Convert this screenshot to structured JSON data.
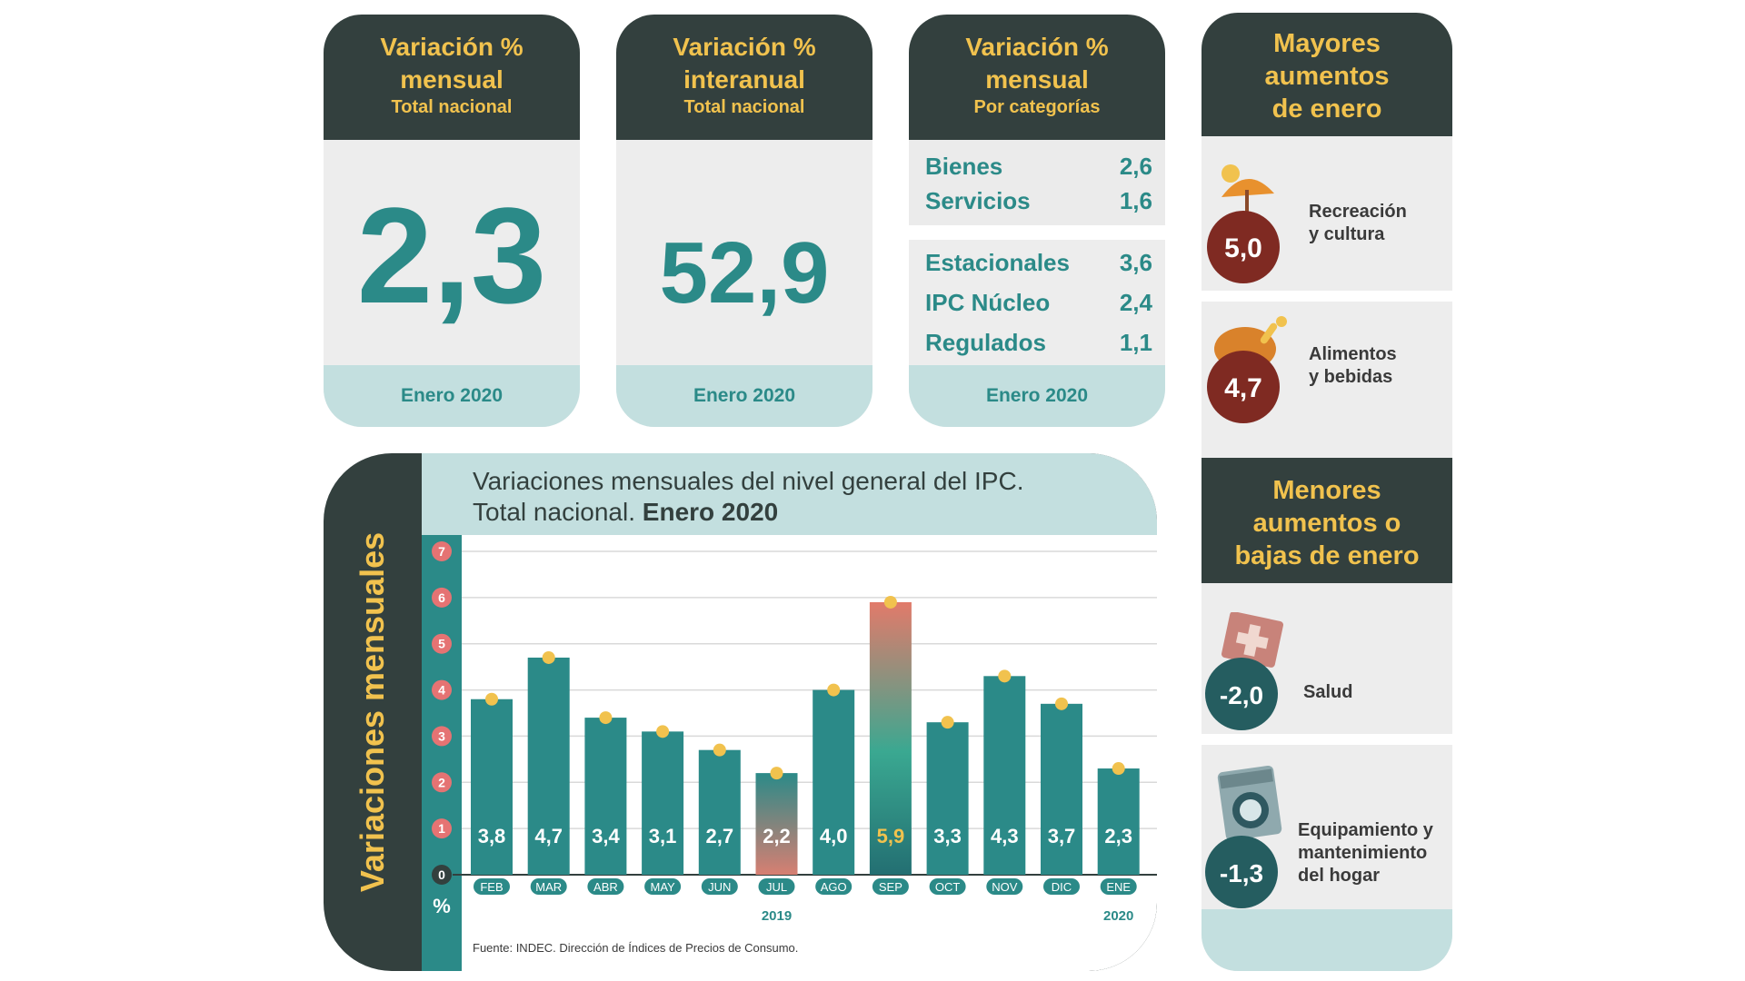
{
  "cards": [
    {
      "head_line1": "Variación %",
      "head_line2": "mensual",
      "head_sub": "Total nacional",
      "value": "2,3",
      "foot": "Enero 2020"
    },
    {
      "head_line1": "Variación %",
      "head_line2": "interanual",
      "head_sub": "Total nacional",
      "value": "52,9",
      "foot": "Enero 2020"
    },
    {
      "head_line1": "Variación %",
      "head_line2": "mensual",
      "head_sub": "Por categorías",
      "foot": "Enero 2020",
      "group1": [
        {
          "label": "Bienes",
          "value": "2,6"
        },
        {
          "label": "Servicios",
          "value": "1,6"
        }
      ],
      "group2": [
        {
          "label": "Estacionales",
          "value": "3,6"
        },
        {
          "label": "IPC Núcleo",
          "value": "2,4"
        },
        {
          "label": "Regulados",
          "value": "1,1"
        }
      ]
    }
  ],
  "mayores": {
    "title_l1": "Mayores",
    "title_l2": "aumentos",
    "title_l3": "de enero",
    "items": [
      {
        "value": "5,0",
        "label_l1": "Recreación",
        "label_l2": "y cultura",
        "icon": "beach-umbrella-icon"
      },
      {
        "value": "4,7",
        "label_l1": "Alimentos",
        "label_l2": "y bebidas",
        "icon": "roast-chicken-icon"
      }
    ]
  },
  "menores": {
    "title_l1": "Menores",
    "title_l2": "aumentos o",
    "title_l3": "bajas de enero",
    "items": [
      {
        "value": "-2,0",
        "label_l1": "Salud",
        "icon": "health-cross-icon"
      },
      {
        "value": "-1,3",
        "label_l1": "Equipamiento y",
        "label_l2": "mantenimiento",
        "label_l3": "del hogar",
        "icon": "washing-machine-icon"
      }
    ]
  },
  "colors": {
    "dark": "#33403e",
    "teal": "#2b8a88",
    "gold": "#f1c24e",
    "light_teal": "#c3dfdf",
    "red_badge": "#7f2a22",
    "tick_red": "#e57373"
  },
  "chart_data": {
    "type": "bar",
    "title_line1": "Variaciones mensuales del nivel general del IPC.",
    "title_line2_plain": "Total nacional.",
    "title_line2_bold": "Enero 2020",
    "ylabel": "Variaciones mensuales",
    "y_unit": "%",
    "categories": [
      "FEB",
      "MAR",
      "ABR",
      "MAY",
      "JUN",
      "JUL",
      "AGO",
      "SEP",
      "OCT",
      "NOV",
      "DIC",
      "ENE"
    ],
    "values": [
      3.8,
      4.7,
      3.4,
      3.1,
      2.7,
      2.2,
      4.0,
      5.9,
      3.3,
      4.3,
      3.7,
      2.3
    ],
    "value_labels": [
      "3,8",
      "4,7",
      "3,4",
      "3,1",
      "2,7",
      "2,2",
      "4,0",
      "5,9",
      "3,3",
      "4,3",
      "3,7",
      "2,3"
    ],
    "highlight": {
      "min": "JUL",
      "max": "SEP"
    },
    "year_labels": [
      {
        "label": "2019",
        "under": [
          "FEB",
          "DIC"
        ]
      },
      {
        "label": "2020",
        "under": [
          "ENE"
        ]
      }
    ],
    "yticks": [
      0,
      1,
      2,
      3,
      4,
      5,
      6,
      7
    ],
    "ylim": [
      0,
      7
    ],
    "grid": true,
    "source": "Fuente: INDEC. Dirección de Índices de Precios de Consumo."
  }
}
